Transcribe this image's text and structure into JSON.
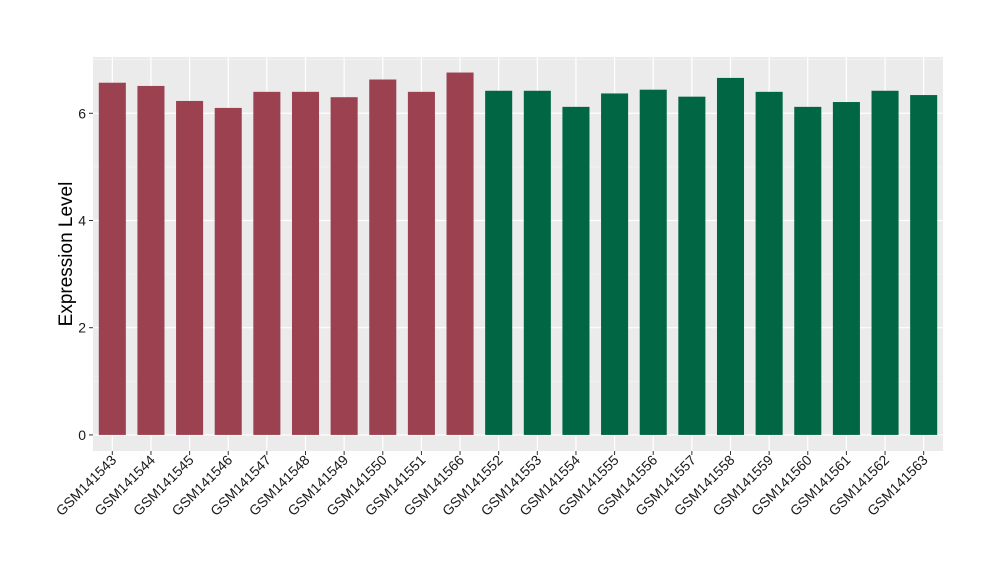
{
  "chart_data": {
    "type": "bar",
    "ylabel": "Expression Level",
    "xlabel": "",
    "ylim": [
      -0.3,
      7.05
    ],
    "yticks": [
      0,
      2,
      4,
      6
    ],
    "grid": true,
    "legend": "none",
    "categories": [
      "GSM141543",
      "GSM141544",
      "GSM141545",
      "GSM141546",
      "GSM141547",
      "GSM141548",
      "GSM141549",
      "GSM141550",
      "GSM141551",
      "GSM141566",
      "GSM141552",
      "GSM141553",
      "GSM141554",
      "GSM141555",
      "GSM141556",
      "GSM141557",
      "GSM141558",
      "GSM141559",
      "GSM141560",
      "GSM141561",
      "GSM141562",
      "GSM141563"
    ],
    "values": [
      6.57,
      6.51,
      6.23,
      6.1,
      6.4,
      6.4,
      6.3,
      6.63,
      6.4,
      6.76,
      6.42,
      6.42,
      6.12,
      6.37,
      6.44,
      6.31,
      6.66,
      6.4,
      6.12,
      6.21,
      6.42,
      6.34
    ],
    "groups": [
      1,
      1,
      1,
      1,
      1,
      1,
      1,
      1,
      1,
      1,
      2,
      2,
      2,
      2,
      2,
      2,
      2,
      2,
      2,
      2,
      2,
      2
    ],
    "colors": {
      "group1": "#9b4150",
      "group2": "#006644",
      "panel_bg": "#ebebeb",
      "grid_major": "#ffffff",
      "grid_minor": "#f5f5f5",
      "tick_text": "#1a1a1a",
      "axis_tick": "#333333"
    }
  }
}
